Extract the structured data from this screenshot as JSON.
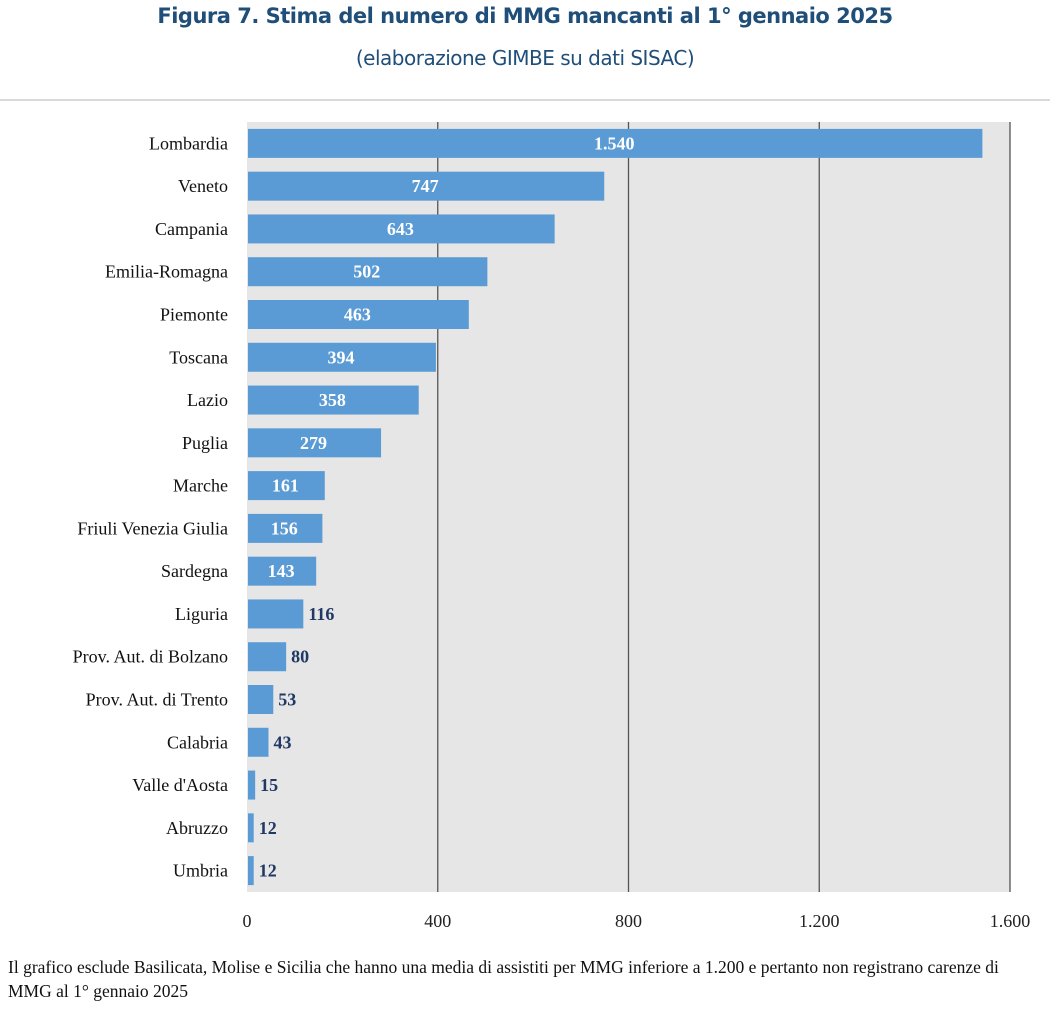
{
  "chart_data": {
    "type": "bar",
    "orientation": "horizontal",
    "title": "Figura 7. Stima del numero di MMG mancanti al 1° gennaio 2025",
    "subtitle": "(elaborazione GIMBE su dati SISAC)",
    "categories": [
      "Lombardia",
      "Veneto",
      "Campania",
      "Emilia-Romagna",
      "Piemonte",
      "Toscana",
      "Lazio",
      "Puglia",
      "Marche",
      "Friuli Venezia Giulia",
      "Sardegna",
      "Liguria",
      "Prov. Aut. di Bolzano",
      "Prov. Aut. di Trento",
      "Calabria",
      "Valle d'Aosta",
      "Abruzzo",
      "Umbria"
    ],
    "values": [
      1540,
      747,
      643,
      502,
      463,
      394,
      358,
      279,
      161,
      156,
      143,
      116,
      80,
      53,
      43,
      15,
      12,
      12
    ],
    "data_labels": [
      "1.540",
      "747",
      "643",
      "502",
      "463",
      "394",
      "358",
      "279",
      "161",
      "156",
      "143",
      "116",
      "80",
      "53",
      "43",
      "15",
      "12",
      "12"
    ],
    "xlim": [
      0,
      1600
    ],
    "x_ticks": [
      0,
      400,
      800,
      1200,
      1600
    ],
    "x_tick_labels": [
      "0",
      "400",
      "800",
      "1.200",
      "1.600"
    ],
    "xlabel": "",
    "ylabel": "",
    "grid": "vertical",
    "legend": "none",
    "colors": {
      "bar": "#5b9bd5",
      "plot_background": "#e6e6e6",
      "label_inside": "#ffffff",
      "label_outside": "#1f3864",
      "title": "#1f4e79"
    }
  },
  "note": "Il grafico esclude Basilicata, Molise e Sicilia che hanno una media di assistiti per MMG inferiore a 1.200 e pertanto non registrano carenze di MMG al 1° gennaio 2025"
}
